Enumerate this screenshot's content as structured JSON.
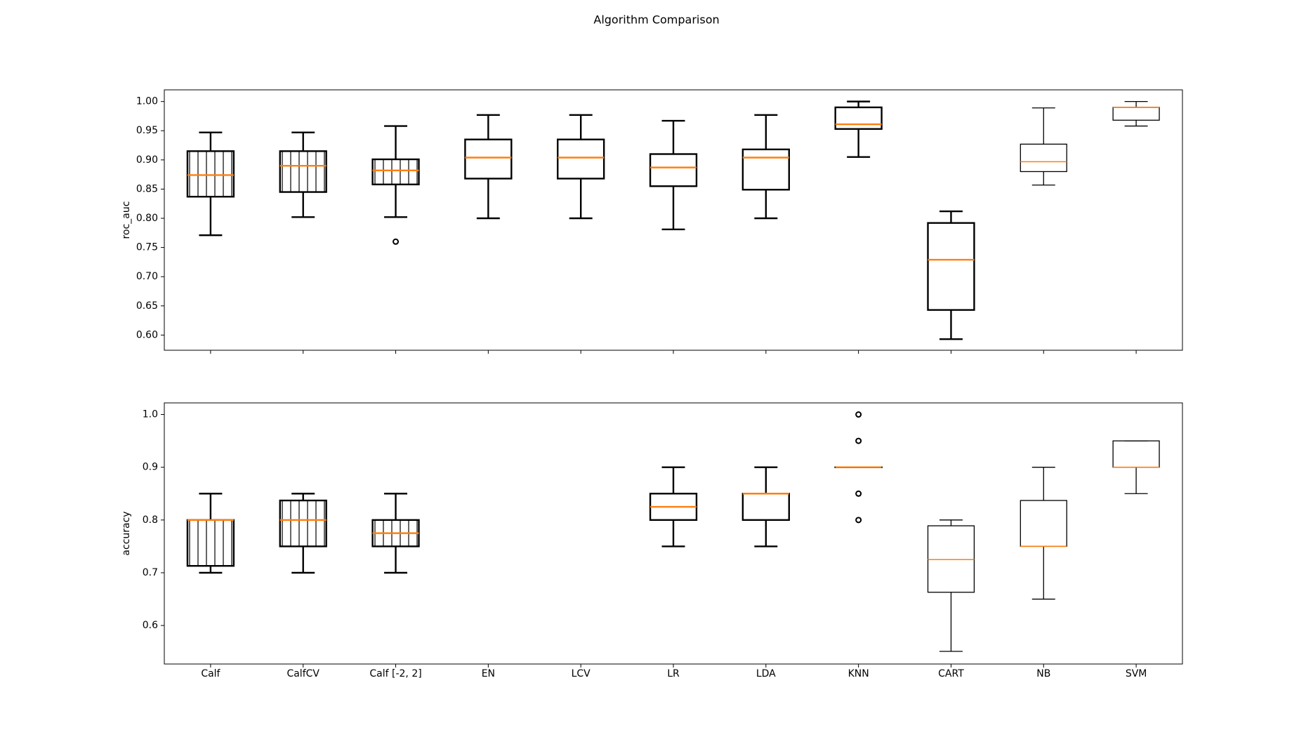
{
  "title": "Algorithm Comparison",
  "chart_data": [
    {
      "type": "box",
      "ylabel": "roc_auc",
      "ylim": [
        0.574,
        1.02
      ],
      "yticks": [
        {
          "value": 0.6,
          "label": "0.60"
        },
        {
          "value": 0.65,
          "label": "0.65"
        },
        {
          "value": 0.7,
          "label": "0.70"
        },
        {
          "value": 0.75,
          "label": "0.75"
        },
        {
          "value": 0.8,
          "label": "0.80"
        },
        {
          "value": 0.85,
          "label": "0.85"
        },
        {
          "value": 0.9,
          "label": "0.90"
        },
        {
          "value": 0.95,
          "label": "0.95"
        },
        {
          "value": 1.0,
          "label": "1.00"
        }
      ],
      "box_color": "#000000",
      "median_color": "#ff7f0e",
      "boxes": [
        {
          "whislo": 0.771,
          "q1": 0.837,
          "med": 0.874,
          "q3": 0.915,
          "whishi": 0.947,
          "fliers": [],
          "hatched": true,
          "bold": true
        },
        {
          "whislo": 0.802,
          "q1": 0.845,
          "med": 0.89,
          "q3": 0.915,
          "whishi": 0.947,
          "fliers": [],
          "hatched": true,
          "bold": true
        },
        {
          "whislo": 0.802,
          "q1": 0.858,
          "med": 0.882,
          "q3": 0.901,
          "whishi": 0.958,
          "fliers": [
            0.76
          ],
          "hatched": true,
          "bold": true
        },
        {
          "whislo": 0.8,
          "q1": 0.868,
          "med": 0.904,
          "q3": 0.935,
          "whishi": 0.977,
          "fliers": [],
          "hatched": false,
          "bold": true
        },
        {
          "whislo": 0.8,
          "q1": 0.868,
          "med": 0.904,
          "q3": 0.935,
          "whishi": 0.977,
          "fliers": [],
          "hatched": false,
          "bold": true
        },
        {
          "whislo": 0.781,
          "q1": 0.855,
          "med": 0.887,
          "q3": 0.91,
          "whishi": 0.967,
          "fliers": [],
          "hatched": false,
          "bold": true
        },
        {
          "whislo": 0.8,
          "q1": 0.849,
          "med": 0.904,
          "q3": 0.918,
          "whishi": 0.977,
          "fliers": [],
          "hatched": false,
          "bold": true
        },
        {
          "whislo": 0.905,
          "q1": 0.953,
          "med": 0.961,
          "q3": 0.99,
          "whishi": 1.0,
          "fliers": [],
          "hatched": false,
          "bold": true
        },
        {
          "whislo": 0.593,
          "q1": 0.643,
          "med": 0.729,
          "q3": 0.792,
          "whishi": 0.812,
          "fliers": [],
          "hatched": false,
          "bold": true
        },
        {
          "whislo": 0.857,
          "q1": 0.88,
          "med": 0.897,
          "q3": 0.927,
          "whishi": 0.989,
          "fliers": [],
          "hatched": false,
          "bold": false
        },
        {
          "whislo": 0.958,
          "q1": 0.968,
          "med": 0.99,
          "q3": 0.99,
          "whishi": 1.0,
          "fliers": [],
          "hatched": false,
          "bold": false
        }
      ]
    },
    {
      "type": "box",
      "ylabel": "accuracy",
      "ylim": [
        0.527,
        1.022
      ],
      "yticks": [
        0.6,
        0.7,
        0.8,
        0.9,
        {
          "value": 1.0,
          "label": "1.0"
        }
      ],
      "box_color": "#000000",
      "median_color": "#ff7f0e",
      "categories": [
        "Calf",
        "CalfCV",
        "Calf [-2, 2]",
        "EN",
        "LCV",
        "LR",
        "LDA",
        "KNN",
        "CART",
        "NB",
        "SVM"
      ],
      "boxes": [
        {
          "whislo": 0.7,
          "q1": 0.713,
          "med": 0.8,
          "q3": 0.8,
          "whishi": 0.85,
          "fliers": [],
          "hatched": true,
          "bold": true
        },
        {
          "whislo": 0.7,
          "q1": 0.75,
          "med": 0.8,
          "q3": 0.837,
          "whishi": 0.85,
          "fliers": [],
          "hatched": true,
          "bold": true
        },
        {
          "whislo": 0.7,
          "q1": 0.75,
          "med": 0.775,
          "q3": 0.8,
          "whishi": 0.85,
          "fliers": [],
          "hatched": true,
          "bold": true
        },
        null,
        null,
        {
          "whislo": 0.75,
          "q1": 0.8,
          "med": 0.825,
          "q3": 0.85,
          "whishi": 0.9,
          "fliers": [],
          "hatched": false,
          "bold": true
        },
        {
          "whislo": 0.75,
          "q1": 0.8,
          "med": 0.85,
          "q3": 0.85,
          "whishi": 0.9,
          "fliers": [],
          "hatched": false,
          "bold": true
        },
        {
          "whislo": 0.9,
          "q1": 0.9,
          "med": 0.9,
          "q3": 0.9,
          "whishi": 0.9,
          "fliers": [
            1.0,
            0.95,
            0.85,
            0.8
          ],
          "hatched": false,
          "bold": true
        },
        {
          "whislo": 0.551,
          "q1": 0.663,
          "med": 0.725,
          "q3": 0.789,
          "whishi": 0.8,
          "fliers": [],
          "hatched": false,
          "bold": false
        },
        {
          "whislo": 0.65,
          "q1": 0.75,
          "med": 0.75,
          "q3": 0.837,
          "whishi": 0.9,
          "fliers": [],
          "hatched": false,
          "bold": false
        },
        {
          "whislo": 0.85,
          "q1": 0.9,
          "med": 0.9,
          "q3": 0.95,
          "whishi": 0.95,
          "fliers": [],
          "hatched": false,
          "bold": false
        }
      ]
    }
  ]
}
